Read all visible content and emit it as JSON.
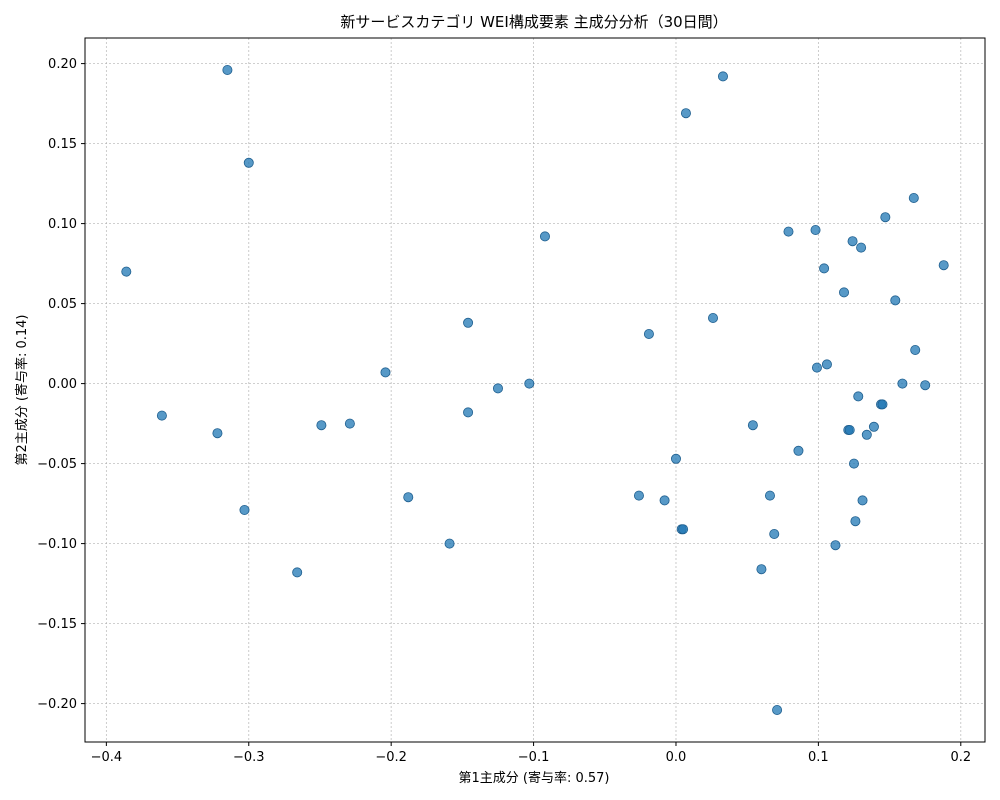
{
  "chart_data": {
    "type": "scatter",
    "title": "新サービスカテゴリ WEI構成要素 主成分分析（30日間）",
    "xlabel": "第1主成分 (寄与率: 0.57)",
    "ylabel": "第2主成分 (寄与率: 0.14)",
    "xlim": [
      -0.415,
      0.217
    ],
    "ylim": [
      -0.224,
      0.216
    ],
    "x_ticks": [
      -0.4,
      -0.3,
      -0.2,
      -0.1,
      0.0,
      0.1,
      0.2
    ],
    "x_tick_labels": [
      "−0.4",
      "−0.3",
      "−0.2",
      "−0.1",
      "0.0",
      "0.1",
      "0.2"
    ],
    "y_ticks": [
      -0.2,
      -0.15,
      -0.1,
      -0.05,
      0.0,
      0.05,
      0.1,
      0.15,
      0.2
    ],
    "y_tick_labels": [
      "−0.20",
      "−0.15",
      "−0.10",
      "−0.05",
      "0.00",
      "0.05",
      "0.10",
      "0.15",
      "0.20"
    ],
    "grid": true,
    "marker_color": "#1f77b4",
    "points": [
      {
        "x": -0.386,
        "y": 0.07
      },
      {
        "x": -0.315,
        "y": 0.196
      },
      {
        "x": -0.3,
        "y": 0.138
      },
      {
        "x": -0.361,
        "y": -0.02
      },
      {
        "x": -0.322,
        "y": -0.031
      },
      {
        "x": -0.303,
        "y": -0.079
      },
      {
        "x": -0.266,
        "y": -0.118
      },
      {
        "x": -0.249,
        "y": -0.026
      },
      {
        "x": -0.229,
        "y": -0.025
      },
      {
        "x": -0.204,
        "y": 0.007
      },
      {
        "x": -0.188,
        "y": -0.071
      },
      {
        "x": -0.159,
        "y": -0.1
      },
      {
        "x": -0.146,
        "y": 0.038
      },
      {
        "x": -0.146,
        "y": -0.018
      },
      {
        "x": -0.125,
        "y": -0.003
      },
      {
        "x": -0.103,
        "y": 0.0
      },
      {
        "x": -0.092,
        "y": 0.092
      },
      {
        "x": -0.026,
        "y": -0.07
      },
      {
        "x": -0.019,
        "y": 0.031
      },
      {
        "x": -0.008,
        "y": -0.073
      },
      {
        "x": 0.0,
        "y": -0.047
      },
      {
        "x": 0.004,
        "y": -0.091
      },
      {
        "x": 0.005,
        "y": -0.091
      },
      {
        "x": 0.007,
        "y": 0.169
      },
      {
        "x": 0.026,
        "y": 0.041
      },
      {
        "x": 0.033,
        "y": 0.192
      },
      {
        "x": 0.054,
        "y": -0.026
      },
      {
        "x": 0.06,
        "y": -0.116
      },
      {
        "x": 0.066,
        "y": -0.07
      },
      {
        "x": 0.069,
        "y": -0.094
      },
      {
        "x": 0.071,
        "y": -0.204
      },
      {
        "x": 0.079,
        "y": 0.095
      },
      {
        "x": 0.086,
        "y": -0.042
      },
      {
        "x": 0.098,
        "y": 0.096
      },
      {
        "x": 0.099,
        "y": 0.01
      },
      {
        "x": 0.104,
        "y": 0.072
      },
      {
        "x": 0.106,
        "y": 0.012
      },
      {
        "x": 0.112,
        "y": -0.101
      },
      {
        "x": 0.118,
        "y": 0.057
      },
      {
        "x": 0.121,
        "y": -0.029
      },
      {
        "x": 0.122,
        "y": -0.029
      },
      {
        "x": 0.124,
        "y": 0.089
      },
      {
        "x": 0.125,
        "y": -0.05
      },
      {
        "x": 0.126,
        "y": -0.086
      },
      {
        "x": 0.128,
        "y": -0.008
      },
      {
        "x": 0.13,
        "y": 0.085
      },
      {
        "x": 0.131,
        "y": -0.073
      },
      {
        "x": 0.134,
        "y": -0.032
      },
      {
        "x": 0.139,
        "y": -0.027
      },
      {
        "x": 0.144,
        "y": -0.013
      },
      {
        "x": 0.145,
        "y": -0.013
      },
      {
        "x": 0.147,
        "y": 0.104
      },
      {
        "x": 0.154,
        "y": 0.052
      },
      {
        "x": 0.159,
        "y": 0.0
      },
      {
        "x": 0.167,
        "y": 0.116
      },
      {
        "x": 0.168,
        "y": 0.021
      },
      {
        "x": 0.175,
        "y": -0.001
      },
      {
        "x": 0.188,
        "y": 0.074
      }
    ]
  }
}
